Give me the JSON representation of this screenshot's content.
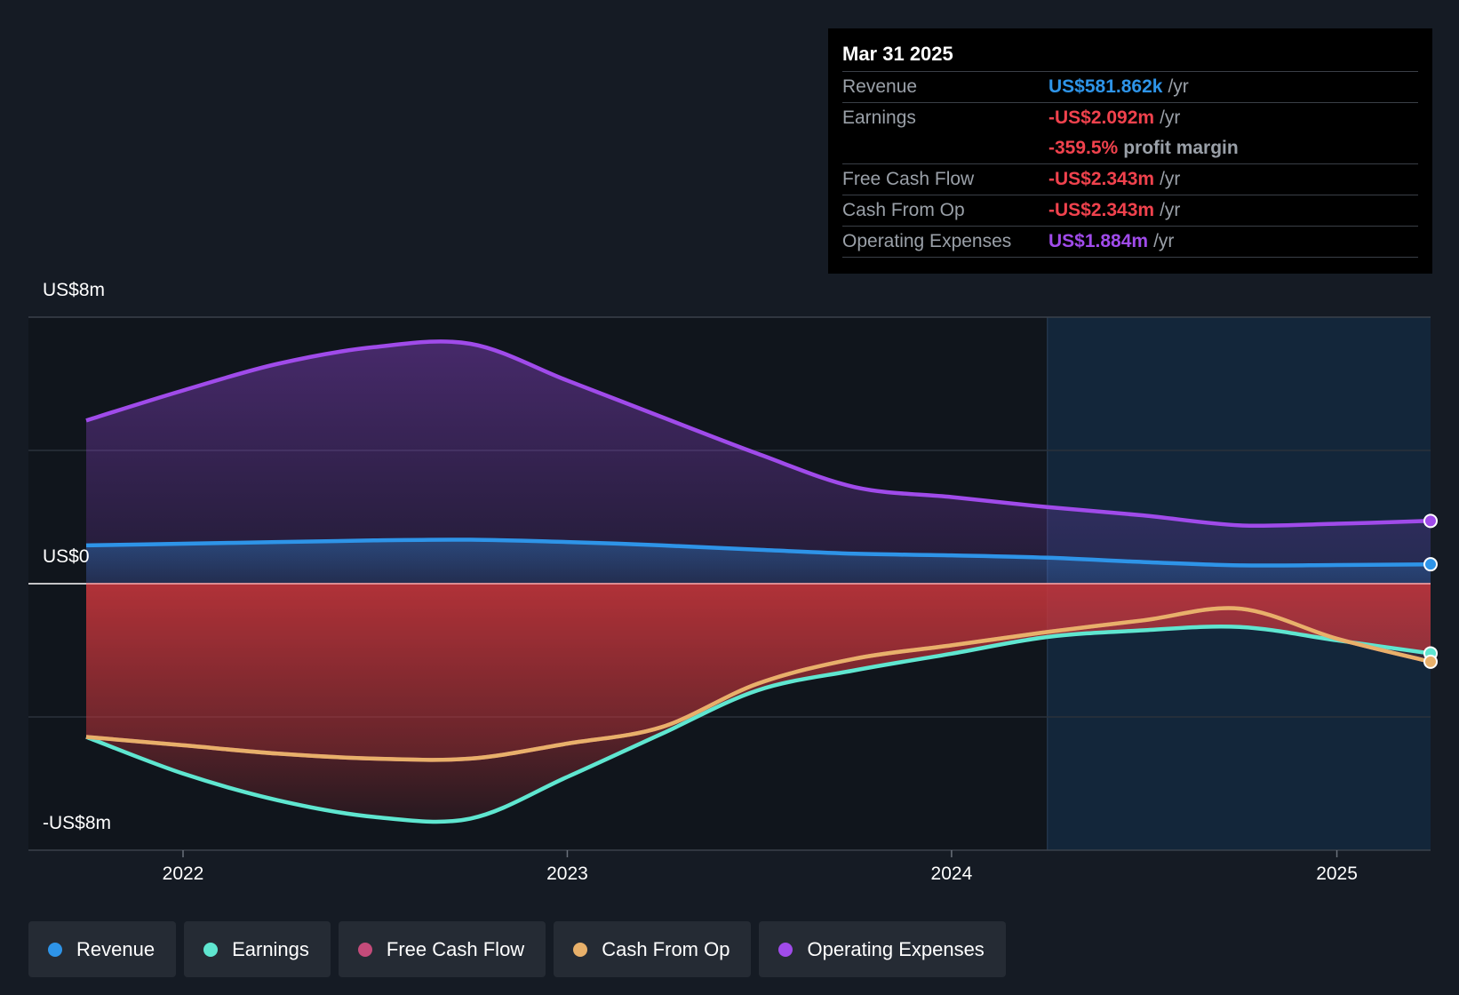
{
  "chart_data": {
    "type": "area",
    "x_ticks": [
      "2022",
      "2023",
      "2024",
      "2025"
    ],
    "y_ticks": [
      {
        "value": 8000000,
        "label": "US$8m"
      },
      {
        "value": 0,
        "label": "US$0"
      },
      {
        "value": -8000000,
        "label": "-US$8m"
      }
    ],
    "ylim": [
      -8000000,
      8000000
    ],
    "grid": true,
    "legend_position": "bottom",
    "forecast_shading_from": "2024-04-01",
    "series": [
      {
        "name": "Operating Expenses",
        "color": "#a04bea",
        "x": [
          "2021-10-01",
          "2022-01-01",
          "2022-04-01",
          "2022-07-01",
          "2022-10-01",
          "2023-01-01",
          "2023-04-01",
          "2023-07-01",
          "2023-10-01",
          "2024-01-01",
          "2024-04-01",
          "2024-07-01",
          "2024-10-01",
          "2025-01-01",
          "2025-03-31"
        ],
        "values": [
          4900000,
          5800000,
          6600000,
          7100000,
          7200000,
          6100000,
          5000000,
          3900000,
          2900000,
          2600000,
          2300000,
          2050000,
          1750000,
          1800000,
          1884000
        ]
      },
      {
        "name": "Revenue",
        "color": "#2e94e8",
        "x": [
          "2021-10-01",
          "2022-01-01",
          "2022-04-01",
          "2022-07-01",
          "2022-10-01",
          "2023-01-01",
          "2023-04-01",
          "2023-07-01",
          "2023-10-01",
          "2024-01-01",
          "2024-04-01",
          "2024-07-01",
          "2024-10-01",
          "2025-01-01",
          "2025-03-31"
        ],
        "values": [
          1150000,
          1200000,
          1250000,
          1300000,
          1320000,
          1250000,
          1150000,
          1020000,
          900000,
          850000,
          780000,
          650000,
          550000,
          560000,
          581862
        ]
      },
      {
        "name": "Earnings",
        "color": "#5fe6d0",
        "x": [
          "2021-10-01",
          "2022-01-01",
          "2022-04-01",
          "2022-07-01",
          "2022-10-01",
          "2023-01-01",
          "2023-04-01",
          "2023-07-01",
          "2023-10-01",
          "2024-01-01",
          "2024-04-01",
          "2024-07-01",
          "2024-10-01",
          "2025-01-01",
          "2025-03-31"
        ],
        "values": [
          -4600000,
          -5700000,
          -6500000,
          -7000000,
          -7050000,
          -5800000,
          -4500000,
          -3200000,
          -2600000,
          -2100000,
          -1600000,
          -1400000,
          -1300000,
          -1700000,
          -2092000
        ]
      },
      {
        "name": "Cash From Op",
        "color": "#e8b06a",
        "x": [
          "2021-10-01",
          "2022-01-01",
          "2022-04-01",
          "2022-07-01",
          "2022-10-01",
          "2023-01-01",
          "2023-04-01",
          "2023-07-01",
          "2023-10-01",
          "2024-01-01",
          "2024-04-01",
          "2024-07-01",
          "2024-10-01",
          "2025-01-01",
          "2025-03-31"
        ],
        "values": [
          -4600000,
          -4850000,
          -5100000,
          -5250000,
          -5250000,
          -4800000,
          -4300000,
          -3000000,
          -2250000,
          -1850000,
          -1450000,
          -1100000,
          -750000,
          -1650000,
          -2343000
        ]
      },
      {
        "name": "Free Cash Flow",
        "color": "#c44b7a",
        "x": [
          "2021-10-01",
          "2022-01-01",
          "2022-04-01",
          "2022-07-01",
          "2022-10-01",
          "2023-01-01",
          "2023-04-01",
          "2023-07-01",
          "2023-10-01",
          "2024-01-01",
          "2024-04-01",
          "2024-07-01",
          "2024-10-01",
          "2025-01-01",
          "2025-03-31"
        ],
        "values": [
          -4600000,
          -4850000,
          -5100000,
          -5250000,
          -5250000,
          -4800000,
          -4300000,
          -3000000,
          -2250000,
          -1850000,
          -1450000,
          -1100000,
          -750000,
          -1650000,
          -2343000
        ]
      }
    ]
  },
  "tooltip": {
    "date": "Mar 31 2025",
    "rows": [
      {
        "label": "Revenue",
        "value": "US$581.862k",
        "unit": "/yr",
        "color": "#2e94e8"
      },
      {
        "label": "Earnings",
        "value": "-US$2.092m",
        "unit": "/yr",
        "color": "#f0424d"
      },
      {
        "label": "",
        "value": "-359.5%",
        "unit": "profit margin",
        "color": "#f0424d"
      },
      {
        "label": "Free Cash Flow",
        "value": "-US$2.343m",
        "unit": "/yr",
        "color": "#f0424d"
      },
      {
        "label": "Cash From Op",
        "value": "-US$2.343m",
        "unit": "/yr",
        "color": "#f0424d"
      },
      {
        "label": "Operating Expenses",
        "value": "US$1.884m",
        "unit": "/yr",
        "color": "#a04bea"
      }
    ]
  },
  "legend": [
    {
      "label": "Revenue",
      "color": "#2e94e8"
    },
    {
      "label": "Earnings",
      "color": "#5fe6d0"
    },
    {
      "label": "Free Cash Flow",
      "color": "#c44b7a"
    },
    {
      "label": "Cash From Op",
      "color": "#e8b06a"
    },
    {
      "label": "Operating Expenses",
      "color": "#a04bea"
    }
  ]
}
